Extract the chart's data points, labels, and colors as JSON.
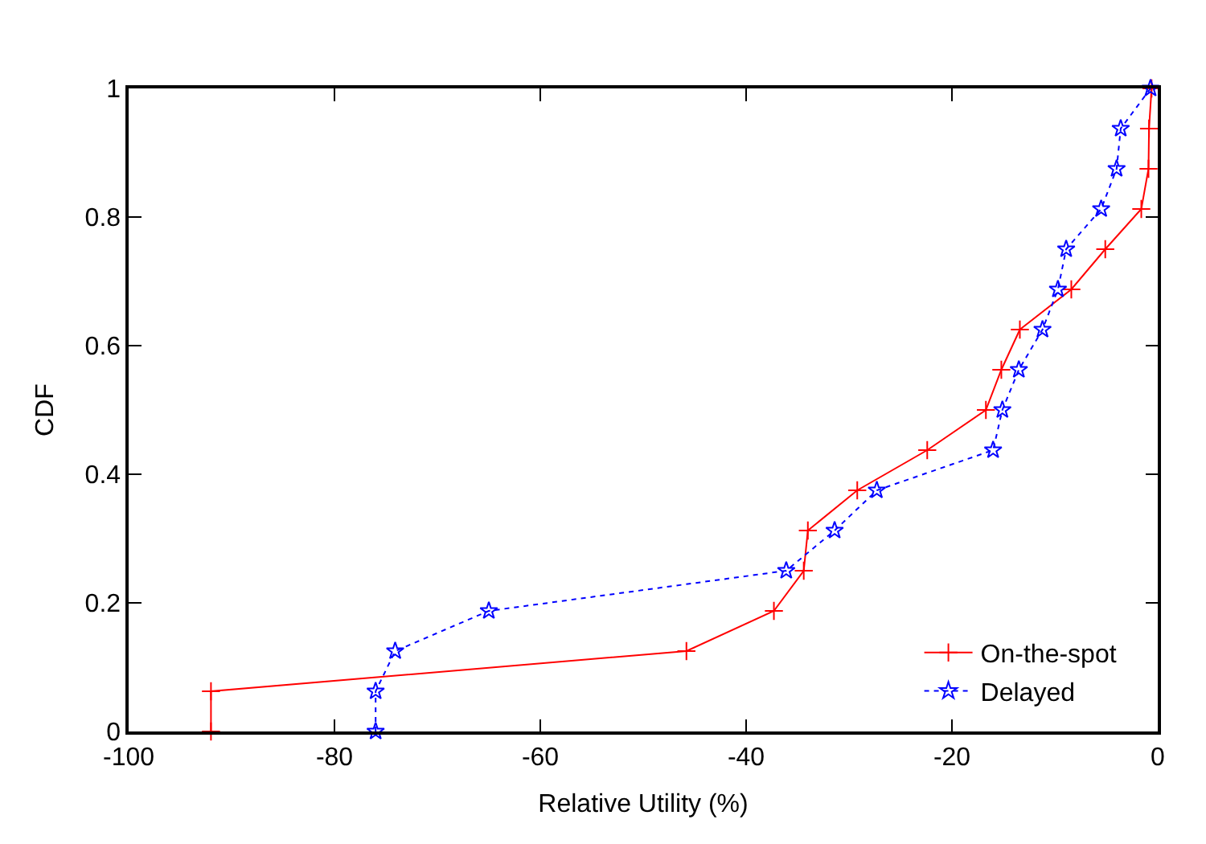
{
  "chart_data": {
    "type": "line",
    "xlabel": "Relative Utility (%)",
    "ylabel": "CDF",
    "xlim": [
      -100,
      0
    ],
    "xticks": [
      -100,
      -80,
      -60,
      -40,
      -20,
      0
    ],
    "ylim": [
      0,
      1
    ],
    "yticks": [
      0,
      0.2,
      0.4,
      0.6,
      0.8,
      1
    ],
    "legend": "bottom right",
    "series": [
      {
        "name": "On-the-spot",
        "color": "#ff0000",
        "marker": "cross",
        "line_style": "solid",
        "x": [
          -92,
          -92,
          -45.8,
          -37.3,
          -34.4,
          -34.0,
          -29.2,
          -22.4,
          -16.7,
          -15.2,
          -13.4,
          -8.4,
          -5.1,
          -1.6,
          -0.9,
          -0.85,
          -0.6
        ],
        "values": [
          0,
          0.0625,
          0.125,
          0.1875,
          0.25,
          0.3125,
          0.375,
          0.4375,
          0.5,
          0.5625,
          0.625,
          0.6875,
          0.75,
          0.8125,
          0.875,
          0.9375,
          1
        ]
      },
      {
        "name": "Delayed",
        "color": "#0000ff",
        "marker": "star",
        "line_style": "dotted",
        "x": [
          -76.0,
          -76.0,
          -74.1,
          -65.0,
          -36.1,
          -31.4,
          -27.3,
          -16.0,
          -15.1,
          -13.5,
          -11.2,
          -9.7,
          -8.9,
          -5.5,
          -4.0,
          -3.6,
          -0.7
        ],
        "values": [
          0,
          0.0625,
          0.125,
          0.1875,
          0.25,
          0.3125,
          0.375,
          0.4375,
          0.5,
          0.5625,
          0.625,
          0.6875,
          0.75,
          0.8125,
          0.875,
          0.9375,
          1
        ]
      }
    ]
  }
}
